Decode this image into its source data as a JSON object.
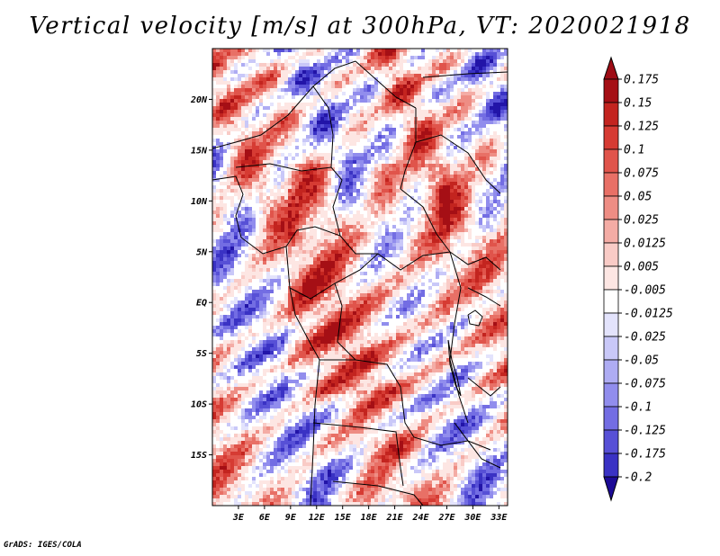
{
  "title": "Vertical velocity [m/s] at 300hPa, VT: 2020021918",
  "credit": "GrADS: IGES/COLA",
  "map": {
    "lon_range": [
      0,
      34
    ],
    "lat_range": [
      -20,
      25
    ],
    "lat_ticks": [
      {
        "value": 20,
        "label": "20N"
      },
      {
        "value": 15,
        "label": "15N"
      },
      {
        "value": 10,
        "label": "10N"
      },
      {
        "value": 5,
        "label": "5N"
      },
      {
        "value": 0,
        "label": "EQ"
      },
      {
        "value": -5,
        "label": "5S"
      },
      {
        "value": -10,
        "label": "10S"
      },
      {
        "value": -15,
        "label": "15S"
      }
    ],
    "lon_ticks": [
      {
        "value": 3,
        "label": "3E"
      },
      {
        "value": 6,
        "label": "6E"
      },
      {
        "value": 9,
        "label": "9E"
      },
      {
        "value": 12,
        "label": "12E"
      },
      {
        "value": 15,
        "label": "15E"
      },
      {
        "value": 18,
        "label": "18E"
      },
      {
        "value": 21,
        "label": "21E"
      },
      {
        "value": 24,
        "label": "24E"
      },
      {
        "value": 27,
        "label": "27E"
      },
      {
        "value": 30,
        "label": "30E"
      },
      {
        "value": 33,
        "label": "33E"
      }
    ]
  },
  "colorbar": {
    "levels": [
      {
        "label": "0.175",
        "color": "#a50f15"
      },
      {
        "label": "0.15",
        "color": "#c3241f"
      },
      {
        "label": "0.125",
        "color": "#d63b33"
      },
      {
        "label": "0.1",
        "color": "#e0544b"
      },
      {
        "label": "0.075",
        "color": "#e87066"
      },
      {
        "label": "0.05",
        "color": "#ee8d84"
      },
      {
        "label": "0.025",
        "color": "#f4aca5"
      },
      {
        "label": "0.0125",
        "color": "#f9cbc6"
      },
      {
        "label": "0.005",
        "color": "#fde6e3"
      },
      {
        "label": "-0.005",
        "color": "#ffffff"
      },
      {
        "label": "-0.0125",
        "color": "#e3e3fc"
      },
      {
        "label": "-0.025",
        "color": "#c9c8f8"
      },
      {
        "label": "-0.05",
        "color": "#aeacf3"
      },
      {
        "label": "-0.075",
        "color": "#918ded"
      },
      {
        "label": "-0.1",
        "color": "#736de3"
      },
      {
        "label": "-0.125",
        "color": "#5750d6"
      },
      {
        "label": "-0.175",
        "color": "#3a32c4"
      },
      {
        "label": "-0.2",
        "color": "#2214a8"
      }
    ],
    "top_color": "#9e0c15",
    "bottom_color": "#1c0a96"
  }
}
